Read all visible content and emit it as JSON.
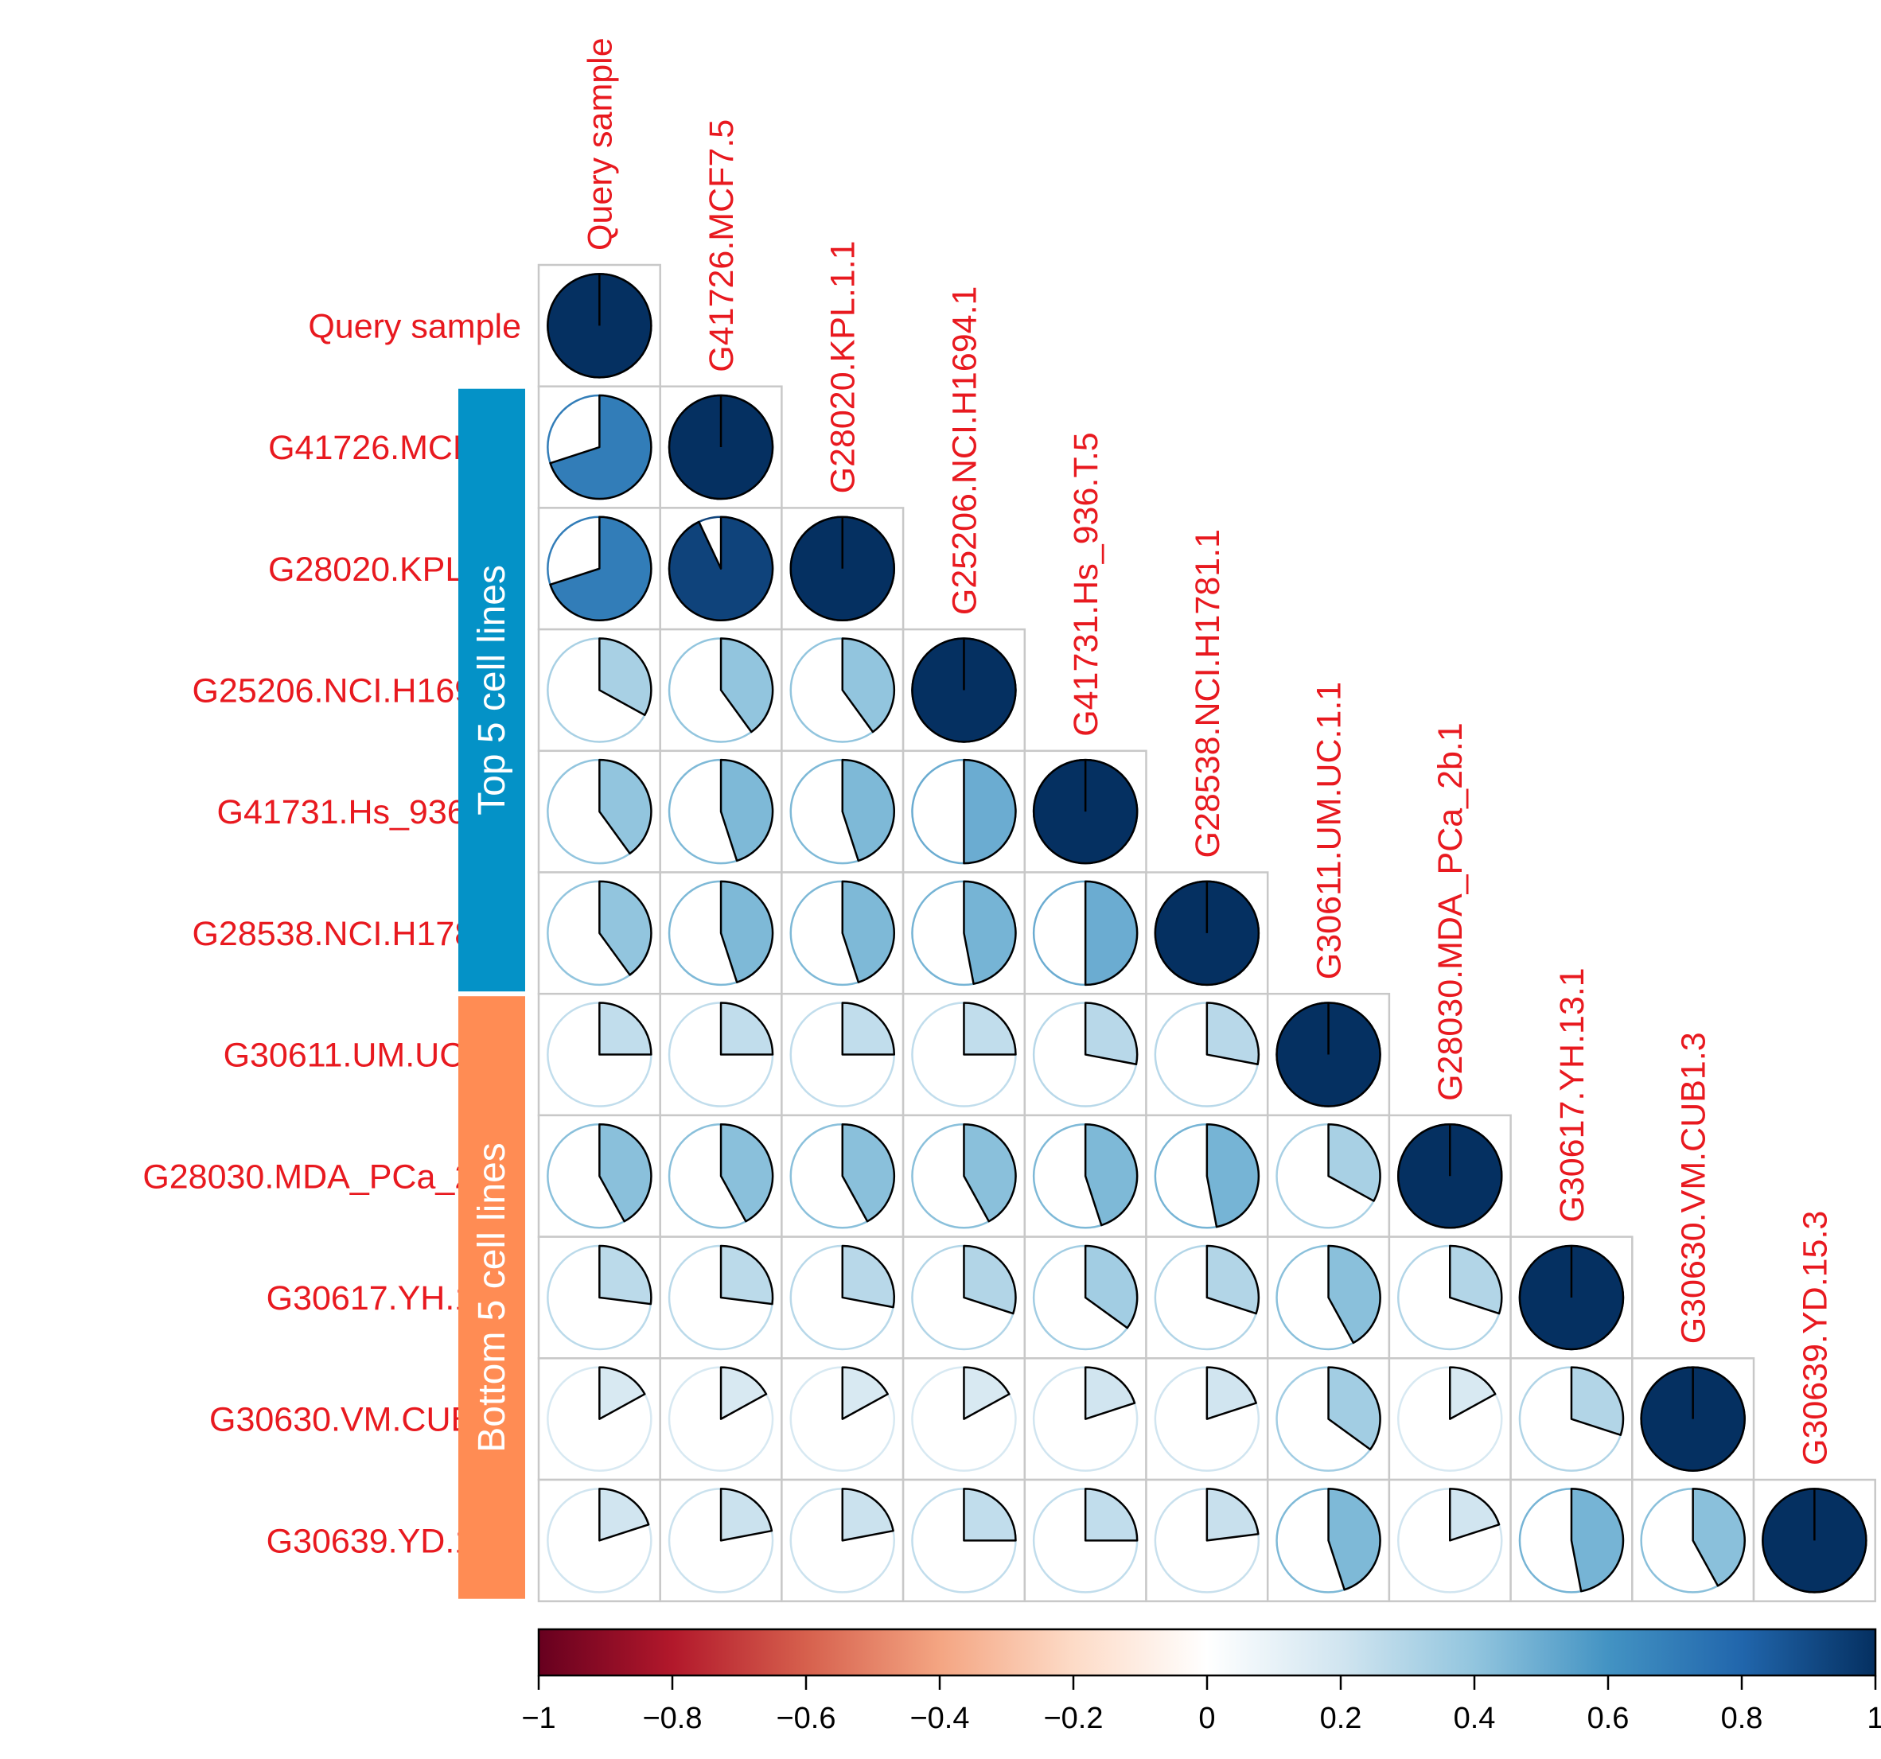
{
  "chart_data": {
    "type": "heatmap",
    "subtype": "correlation-pie-lower-triangle",
    "labels": [
      "Query sample",
      "G41726.MCF7.5",
      "G28020.KPL.1.1",
      "G25206.NCI.H1694.1",
      "G41731.Hs_936.T.5",
      "G28538.NCI.H1781.1",
      "G30611.UM.UC.1.1",
      "G28030.MDA_PCa_2b.1",
      "G30617.YH.13.1",
      "G30630.VM.CUB1.3",
      "G30639.YD.15.3"
    ],
    "matrix": [
      [
        1.0
      ],
      [
        0.7,
        1.0
      ],
      [
        0.7,
        0.93,
        1.0
      ],
      [
        0.33,
        0.4,
        0.4,
        1.0
      ],
      [
        0.4,
        0.45,
        0.45,
        0.5,
        1.0
      ],
      [
        0.4,
        0.45,
        0.45,
        0.47,
        0.5,
        1.0
      ],
      [
        0.25,
        0.25,
        0.25,
        0.25,
        0.28,
        0.28,
        1.0
      ],
      [
        0.42,
        0.42,
        0.42,
        0.42,
        0.45,
        0.47,
        0.33,
        1.0
      ],
      [
        0.27,
        0.27,
        0.28,
        0.3,
        0.35,
        0.3,
        0.42,
        0.3,
        1.0
      ],
      [
        0.17,
        0.17,
        0.17,
        0.17,
        0.2,
        0.2,
        0.35,
        0.17,
        0.3,
        1.0
      ],
      [
        0.2,
        0.22,
        0.22,
        0.25,
        0.25,
        0.23,
        0.45,
        0.2,
        0.47,
        0.42,
        1.0
      ]
    ],
    "groups": [
      {
        "label": "Top 5 cell lines",
        "color": "#0492c7",
        "rows": [
          1,
          5
        ]
      },
      {
        "label": "Bottom 5 cell lines",
        "color": "#ff8c54",
        "rows": [
          6,
          10
        ]
      }
    ],
    "colorbar": {
      "range": [
        -1,
        1
      ],
      "ticks": [
        "−1",
        "−0.8",
        "−0.6",
        "−0.4",
        "−0.2",
        "0",
        "0.2",
        "0.4",
        "0.6",
        "0.8",
        "1"
      ],
      "colors": [
        "#67001f",
        "#b2182b",
        "#d6604d",
        "#f4a582",
        "#fddbc7",
        "#ffffff",
        "#d1e5f0",
        "#92c5de",
        "#4393c3",
        "#2166ac",
        "#053061"
      ]
    },
    "label_color": "#e8191f"
  }
}
